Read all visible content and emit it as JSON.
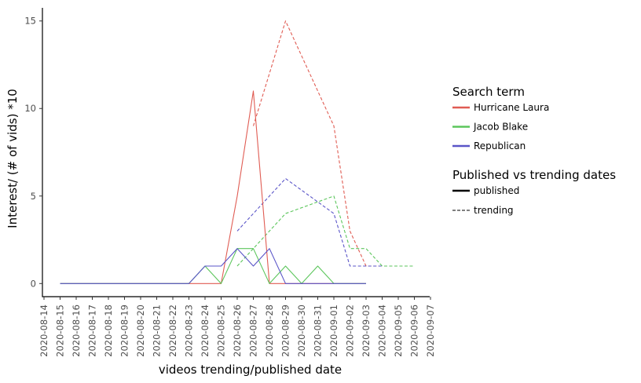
{
  "chart_data": {
    "type": "line",
    "xlabel": "videos trending/published date",
    "ylabel": "Interest/ (# of vids) *10",
    "ylim": [
      -0.75,
      15.75
    ],
    "yticks": [
      0,
      5,
      10,
      15
    ],
    "ytick_labels": [
      "0",
      "5",
      "10",
      "15"
    ],
    "categories": [
      "2020-08-14",
      "2020-08-15",
      "2020-08-16",
      "2020-08-17",
      "2020-08-18",
      "2020-08-19",
      "2020-08-20",
      "2020-08-21",
      "2020-08-22",
      "2020-08-23",
      "2020-08-24",
      "2020-08-25",
      "2020-08-26",
      "2020-08-27",
      "2020-08-28",
      "2020-08-29",
      "2020-08-30",
      "2020-08-31",
      "2020-09-01",
      "2020-09-02",
      "2020-09-03",
      "2020-09-04",
      "2020-09-05",
      "2020-09-06",
      "2020-09-07"
    ],
    "grid": false,
    "legend_placement": "right",
    "legend": {
      "color_title": "Search term",
      "linetype_title": "Published vs trending dates",
      "linetype_entries": [
        {
          "label": "published",
          "dash": "solid"
        },
        {
          "label": "trending",
          "dash": "dashed"
        }
      ]
    },
    "series": [
      {
        "name": "Hurricane Laura",
        "kind": "published",
        "color": "#e05c53",
        "x": [
          "2020-08-15",
          "2020-08-16",
          "2020-08-17",
          "2020-08-18",
          "2020-08-19",
          "2020-08-20",
          "2020-08-21",
          "2020-08-22",
          "2020-08-23",
          "2020-08-24",
          "2020-08-25",
          "2020-08-26",
          "2020-08-27",
          "2020-08-28",
          "2020-08-29",
          "2020-08-30",
          "2020-08-31",
          "2020-09-01",
          "2020-09-02",
          "2020-09-03"
        ],
        "values": [
          0,
          0,
          0,
          0,
          0,
          0,
          0,
          0,
          0,
          0,
          0,
          5,
          11,
          0,
          0,
          0,
          0,
          0,
          0,
          0
        ]
      },
      {
        "name": "Jacob Blake",
        "kind": "published",
        "color": "#5cc65c",
        "x": [
          "2020-08-15",
          "2020-08-16",
          "2020-08-17",
          "2020-08-18",
          "2020-08-19",
          "2020-08-20",
          "2020-08-21",
          "2020-08-22",
          "2020-08-23",
          "2020-08-24",
          "2020-08-25",
          "2020-08-26",
          "2020-08-27",
          "2020-08-28",
          "2020-08-29",
          "2020-08-30",
          "2020-08-31",
          "2020-09-01",
          "2020-09-02",
          "2020-09-03"
        ],
        "values": [
          0,
          0,
          0,
          0,
          0,
          0,
          0,
          0,
          0,
          1,
          0,
          2,
          2,
          0,
          1,
          0,
          1,
          0,
          0,
          0
        ]
      },
      {
        "name": "Republican",
        "kind": "published",
        "color": "#5a55c8",
        "x": [
          "2020-08-15",
          "2020-08-16",
          "2020-08-17",
          "2020-08-18",
          "2020-08-19",
          "2020-08-20",
          "2020-08-21",
          "2020-08-22",
          "2020-08-23",
          "2020-08-24",
          "2020-08-25",
          "2020-08-26",
          "2020-08-27",
          "2020-08-28",
          "2020-08-29",
          "2020-08-30",
          "2020-08-31",
          "2020-09-01",
          "2020-09-02",
          "2020-09-03"
        ],
        "values": [
          0,
          0,
          0,
          0,
          0,
          0,
          0,
          0,
          0,
          1,
          1,
          2,
          1,
          2,
          0,
          0,
          0,
          0,
          0,
          0
        ]
      },
      {
        "name": "Hurricane Laura",
        "kind": "trending",
        "color": "#e05c53",
        "x": [
          "2020-08-27",
          "2020-08-29",
          "2020-09-01",
          "2020-09-02",
          "2020-09-03",
          "2020-09-04"
        ],
        "values": [
          9,
          15,
          9,
          3,
          1,
          1
        ]
      },
      {
        "name": "Jacob Blake",
        "kind": "trending",
        "color": "#5cc65c",
        "x": [
          "2020-08-26",
          "2020-08-27",
          "2020-08-28",
          "2020-08-29",
          "2020-09-01",
          "2020-09-02",
          "2020-09-03",
          "2020-09-04",
          "2020-09-05",
          "2020-09-06"
        ],
        "values": [
          1,
          2,
          3,
          4,
          5,
          2,
          2,
          1,
          1,
          1
        ]
      },
      {
        "name": "Republican",
        "kind": "trending",
        "color": "#5a55c8",
        "x": [
          "2020-08-26",
          "2020-08-29",
          "2020-09-01",
          "2020-09-02",
          "2020-09-03",
          "2020-09-04"
        ],
        "values": [
          3,
          6,
          4,
          1,
          1,
          1
        ]
      }
    ]
  }
}
